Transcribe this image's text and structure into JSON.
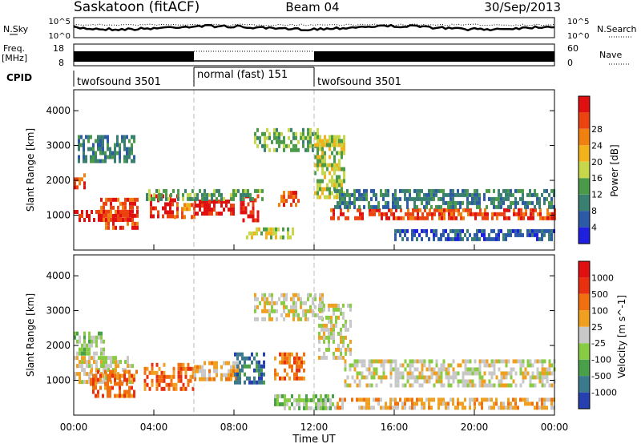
{
  "header": {
    "station": "Saskatoon (fitACF)",
    "beam": "Beam 04",
    "date": "30/Sep/2013"
  },
  "noise_panel": {
    "left_label": "N.Sky",
    "right_label": "N.Search",
    "left_ticks": [
      "10^5",
      "10^0"
    ],
    "right_ticks": [
      "10^5",
      "10^0"
    ]
  },
  "freq_panel": {
    "left_label_1": "Freq.",
    "left_label_2": "[MHz]",
    "right_label": "Nave",
    "left_ticks": [
      "18",
      "8"
    ],
    "right_ticks": [
      "60",
      "0"
    ]
  },
  "cpid": {
    "label": "CPID",
    "segments": [
      {
        "name": "twofsound 3501",
        "start_hour": 0,
        "end_hour": 6
      },
      {
        "name": "normal (fast) 151",
        "start_hour": 6,
        "end_hour": 12
      },
      {
        "name": "twofsound 3501",
        "start_hour": 12,
        "end_hour": 24
      }
    ]
  },
  "chart_data": [
    {
      "type": "heatmap",
      "name": "power",
      "ylabel": "Slant Range [km]",
      "xlim": [
        0,
        24
      ],
      "ylim": [
        0,
        4600
      ],
      "yticks": [
        1000,
        2000,
        3000,
        4000
      ],
      "colorbar": {
        "label": "Power [dB]",
        "ticks": [
          "4",
          "8",
          "12",
          "16",
          "20",
          "24",
          "28"
        ],
        "colors": [
          "#1f1fe0",
          "#2c5aa6",
          "#3a8070",
          "#4a9a4a",
          "#c6d84a",
          "#f2b21c",
          "#f08010",
          "#ec4410",
          "#e01010"
        ]
      },
      "bands": [
        {
          "t0": 0.0,
          "t1": 0.6,
          "r0": 1800,
          "r1": 2200,
          "level": 7
        },
        {
          "t0": 0.0,
          "t1": 3.2,
          "r0": 850,
          "r1": 1150,
          "level": 8
        },
        {
          "t0": 1.2,
          "t1": 3.2,
          "r0": 650,
          "r1": 1500,
          "level": 7
        },
        {
          "t0": 0.2,
          "t1": 3.0,
          "r0": 2600,
          "r1": 3300,
          "level": 2
        },
        {
          "t0": 3.8,
          "t1": 5.2,
          "r0": 1000,
          "r1": 1600,
          "level": 8
        },
        {
          "t0": 5.0,
          "t1": 6.0,
          "r0": 1000,
          "r1": 1350,
          "level": 6
        },
        {
          "t0": 6.0,
          "t1": 8.0,
          "r0": 1000,
          "r1": 1450,
          "level": 8
        },
        {
          "t0": 8.3,
          "t1": 9.2,
          "r0": 900,
          "r1": 1600,
          "level": 8
        },
        {
          "t0": 3.6,
          "t1": 9.4,
          "r0": 1450,
          "r1": 1750,
          "level": 3
        },
        {
          "t0": 10.2,
          "t1": 11.2,
          "r0": 1300,
          "r1": 1700,
          "level": 7
        },
        {
          "t0": 9.0,
          "t1": 12.2,
          "r0": 2900,
          "r1": 3500,
          "level": 3
        },
        {
          "t0": 8.6,
          "t1": 11.0,
          "r0": 350,
          "r1": 650,
          "level": 4
        },
        {
          "t0": 12.0,
          "t1": 13.5,
          "r0": 1500,
          "r1": 3300,
          "level": 4
        },
        {
          "t0": 12.8,
          "t1": 24.0,
          "r0": 900,
          "r1": 1200,
          "level": 7
        },
        {
          "t0": 13.0,
          "t1": 24.0,
          "r0": 1200,
          "r1": 1750,
          "level": 2
        },
        {
          "t0": 16.0,
          "t1": 24.0,
          "r0": 300,
          "r1": 600,
          "level": 1
        }
      ]
    },
    {
      "type": "heatmap",
      "name": "velocity",
      "ylabel": "Slant Range [km]",
      "xlabel": "Time UT",
      "xlim": [
        0,
        24
      ],
      "ylim": [
        0,
        4600
      ],
      "xticks": [
        "00:00",
        "04:00",
        "08:00",
        "12:00",
        "16:00",
        "20:00",
        "00:00"
      ],
      "yticks": [
        1000,
        2000,
        3000,
        4000
      ],
      "colorbar": {
        "label": "Velocity [m s^-1]",
        "ticks": [
          "1000",
          "500",
          "100",
          "25",
          "-25",
          "-100",
          "-500",
          "-1000"
        ],
        "colors": [
          "#2640b0",
          "#3a7a8c",
          "#4aa04a",
          "#88cc44",
          "#c8c8c8",
          "#f0a020",
          "#f07010",
          "#e83010",
          "#e01010"
        ]
      },
      "bands": [
        {
          "t0": 0.0,
          "t1": 1.5,
          "r0": 1800,
          "r1": 2400,
          "level": 3
        },
        {
          "t0": 0.0,
          "t1": 3.0,
          "r0": 1000,
          "r1": 1700,
          "level": 4
        },
        {
          "t0": 0.8,
          "t1": 3.2,
          "r0": 600,
          "r1": 1300,
          "level": 6
        },
        {
          "t0": 3.5,
          "t1": 6.0,
          "r0": 700,
          "r1": 1500,
          "level": 6
        },
        {
          "t0": 6.0,
          "t1": 8.2,
          "r0": 1000,
          "r1": 1550,
          "level": 5
        },
        {
          "t0": 8.0,
          "t1": 9.5,
          "r0": 900,
          "r1": 1800,
          "level": 1
        },
        {
          "t0": 10.0,
          "t1": 11.5,
          "r0": 1100,
          "r1": 1800,
          "level": 6
        },
        {
          "t0": 9.0,
          "t1": 12.4,
          "r0": 2800,
          "r1": 3500,
          "level": 4
        },
        {
          "t0": 12.2,
          "t1": 13.8,
          "r0": 1600,
          "r1": 3200,
          "level": 4
        },
        {
          "t0": 13.5,
          "t1": 24.0,
          "r0": 800,
          "r1": 1600,
          "level": 4
        },
        {
          "t0": 10.0,
          "t1": 13.0,
          "r0": 200,
          "r1": 600,
          "level": 3
        },
        {
          "t0": 13.0,
          "t1": 24.0,
          "r0": 200,
          "r1": 500,
          "level": 5
        }
      ]
    }
  ]
}
